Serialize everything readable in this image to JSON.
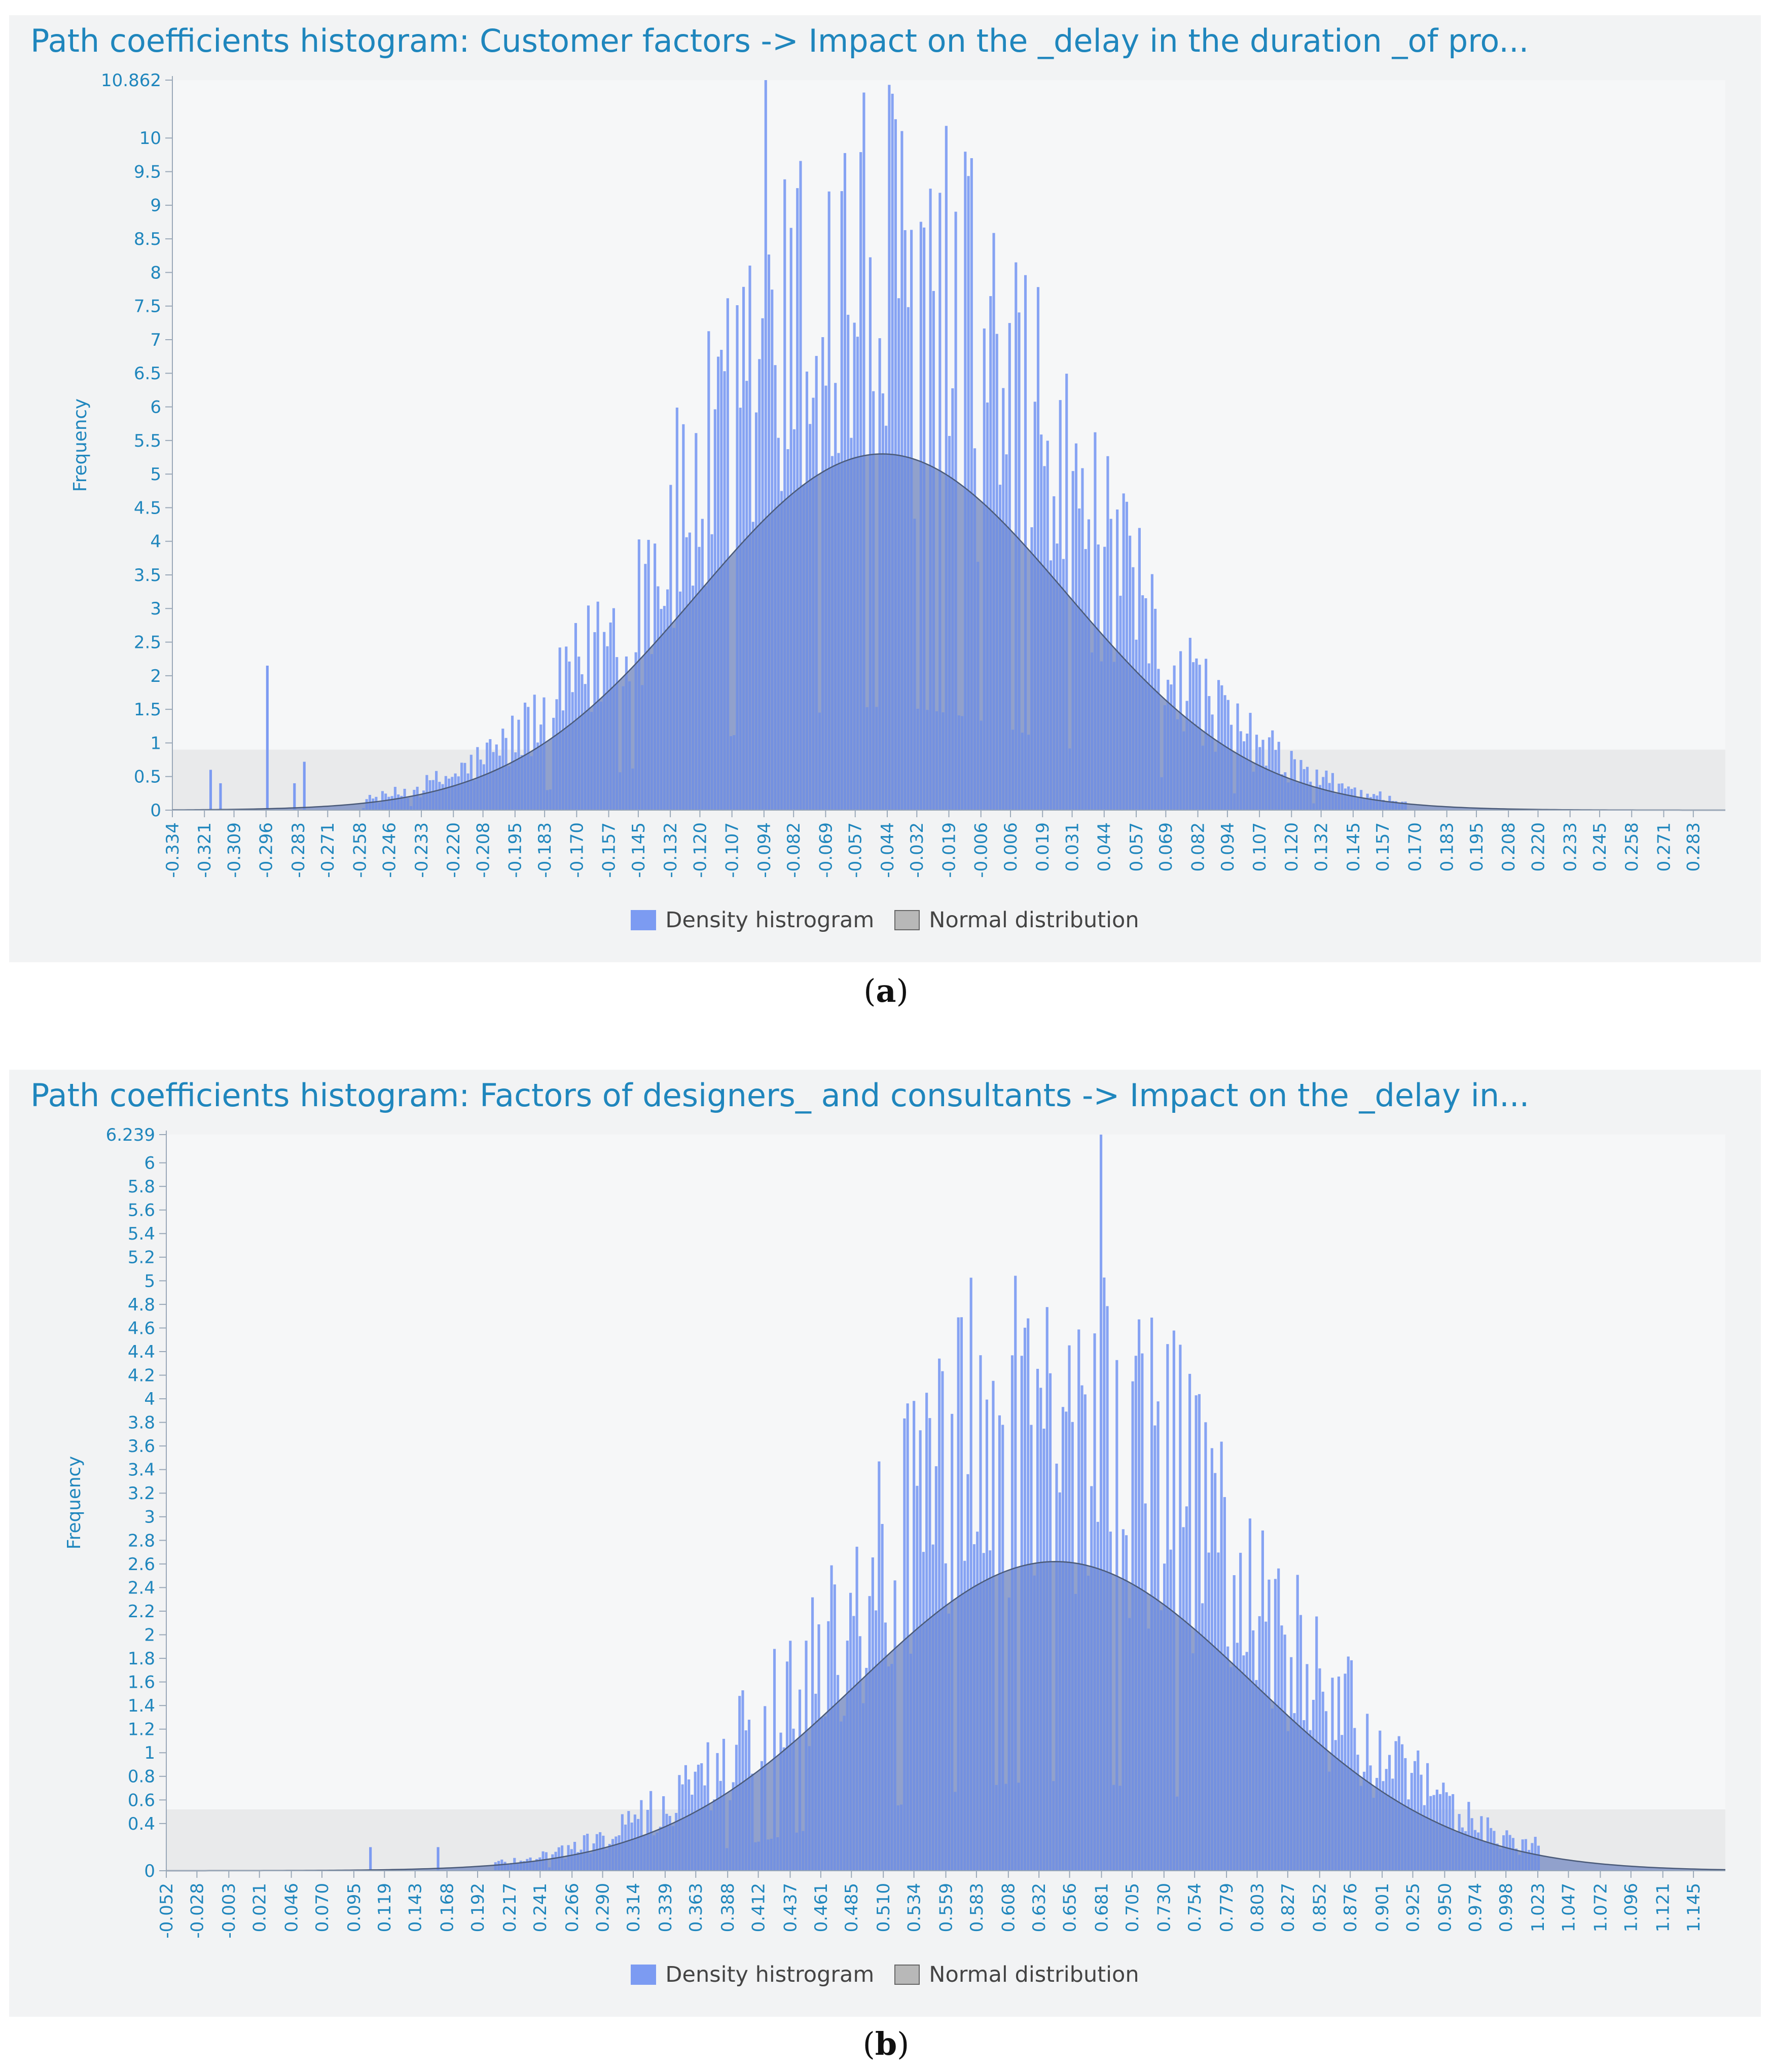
{
  "chart_data": [
    {
      "type": "bar",
      "panel": "a",
      "title": "Path coefficients histogram: Customer factors -> Impact on the _delay in the duration _of pro...",
      "ylabel": "Frequency",
      "xlabel": "",
      "ylim": [
        0,
        10.862
      ],
      "y_max_label": "10.862",
      "y_ticks": [
        0,
        0.5,
        1,
        1.5,
        2,
        2.5,
        3,
        3.5,
        4,
        4.5,
        5,
        5.5,
        6,
        6.5,
        7,
        7.5,
        8,
        8.5,
        9,
        9.5,
        10
      ],
      "x_ticks": [
        "-0.334",
        "-0.321",
        "-0.309",
        "-0.296",
        "-0.283",
        "-0.271",
        "-0.258",
        "-0.246",
        "-0.233",
        "-0.220",
        "-0.208",
        "-0.195",
        "-0.183",
        "-0.170",
        "-0.157",
        "-0.145",
        "-0.132",
        "-0.120",
        "-0.107",
        "-0.094",
        "-0.082",
        "-0.069",
        "-0.057",
        "-0.044",
        "-0.032",
        "-0.019",
        "-0.006",
        "0.006",
        "0.019",
        "0.031",
        "0.044",
        "0.057",
        "0.069",
        "0.082",
        "0.094",
        "0.107",
        "0.120",
        "0.132",
        "0.145",
        "0.157",
        "0.170",
        "0.183",
        "0.195",
        "0.208",
        "0.220",
        "0.233",
        "0.245",
        "0.258",
        "0.271",
        "0.283"
      ],
      "xlim": [
        -0.334,
        0.296
      ],
      "normal": {
        "mean": -0.046,
        "sd": 0.075,
        "peak": 5.3
      },
      "histogram_range": [
        -0.257,
        0.167
      ],
      "outliers": [
        {
          "x": -0.319,
          "y": 0.6
        },
        {
          "x": -0.315,
          "y": 0.4
        },
        {
          "x": -0.296,
          "y": 2.15
        },
        {
          "x": -0.285,
          "y": 0.4
        },
        {
          "x": -0.281,
          "y": 0.72
        }
      ],
      "peak_value": 10.862,
      "legend": [
        "Density histrogram",
        "Normal distribution"
      ]
    },
    {
      "type": "bar",
      "panel": "b",
      "title": "Path coefficients histogram: Factors of designers_ and consultants -> Impact on the _delay in...",
      "ylabel": "Frequency",
      "xlabel": "",
      "ylim": [
        0,
        6.239
      ],
      "y_max_label": "6.239",
      "y_ticks": [
        0,
        0.4,
        0.6,
        0.8,
        1,
        1.2,
        1.4,
        1.6,
        1.8,
        2,
        2.2,
        2.4,
        2.6,
        2.8,
        3,
        3.2,
        3.4,
        3.6,
        3.8,
        4,
        4.2,
        4.4,
        4.6,
        4.8,
        5,
        5.2,
        5.4,
        5.6,
        5.8,
        6
      ],
      "x_ticks": [
        "-0.052",
        "-0.028",
        "-0.003",
        "0.021",
        "0.046",
        "0.070",
        "0.095",
        "0.119",
        "0.143",
        "0.168",
        "0.192",
        "0.217",
        "0.241",
        "0.266",
        "0.290",
        "0.314",
        "0.339",
        "0.363",
        "0.388",
        "0.412",
        "0.437",
        "0.461",
        "0.485",
        "0.510",
        "0.534",
        "0.559",
        "0.583",
        "0.608",
        "0.632",
        "0.656",
        "0.681",
        "0.705",
        "0.730",
        "0.754",
        "0.779",
        "0.803",
        "0.827",
        "0.852",
        "0.876",
        "0.901",
        "0.925",
        "0.950",
        "0.974",
        "0.998",
        "1.023",
        "1.047",
        "1.072",
        "1.096",
        "1.121",
        "1.145"
      ],
      "xlim": [
        -0.052,
        1.17
      ],
      "normal": {
        "mean": 0.645,
        "sd": 0.155,
        "peak": 2.62
      },
      "histogram_range": [
        0.205,
        1.025
      ],
      "outliers": [
        {
          "x": 0.107,
          "y": 0.2
        },
        {
          "x": 0.16,
          "y": 0.2
        }
      ],
      "peak_value": 6.239,
      "legend": [
        "Density histrogram",
        "Normal distribution"
      ]
    }
  ],
  "captions": [
    {
      "open": "(",
      "letter": "a",
      "close": ")"
    },
    {
      "open": "(",
      "letter": "b",
      "close": ")"
    }
  ],
  "colors": {
    "bar": "#7c9bf2",
    "bar_overlap": "#6a86d6",
    "normal_fill": "#b8b8b8",
    "normal_line": "#4a5a78",
    "axis_text": "#1f86bd",
    "title": "#1f86bd"
  }
}
